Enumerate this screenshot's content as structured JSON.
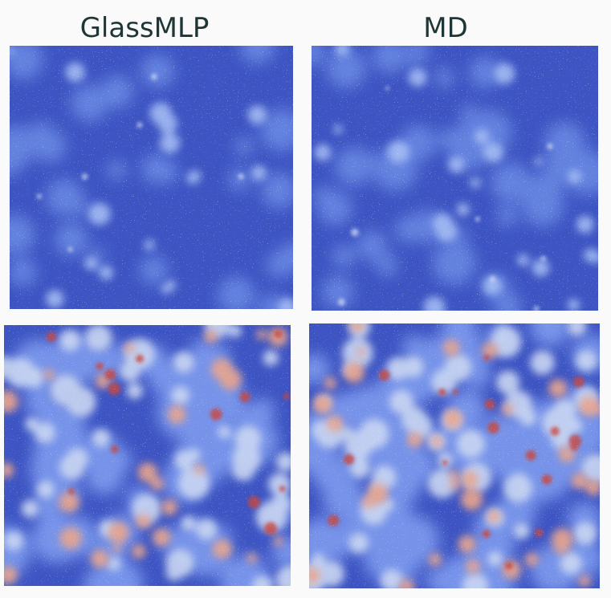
{
  "titles": {
    "left": "GlassMLP",
    "right": "MD"
  }
}
